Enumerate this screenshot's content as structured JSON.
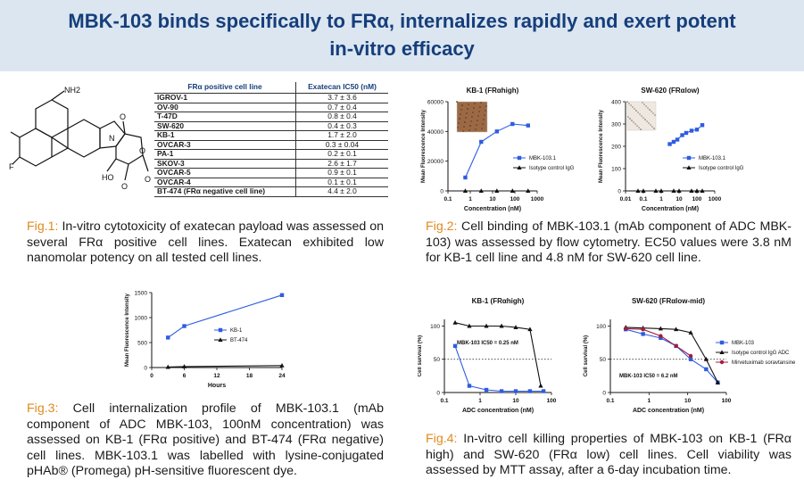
{
  "title": {
    "line1": "MBK-103 binds specifically to FRα, internalizes rapidly and exert potent",
    "line2": "in-vitro efficacy"
  },
  "table": {
    "headers": [
      "FRα positive cell line",
      "Exatecan IC50 (nM)"
    ],
    "rows": [
      {
        "cell_line": "IGROV-1",
        "ic50": "3.7 ± 3.6"
      },
      {
        "cell_line": "OV-90",
        "ic50": "0.7 ± 0.4"
      },
      {
        "cell_line": "T-47D",
        "ic50": "0.8 ± 0.4"
      },
      {
        "cell_line": "SW-620",
        "ic50": "0.4 ± 0.3"
      },
      {
        "cell_line": "KB-1",
        "ic50": "1.7 ± 2.0"
      },
      {
        "cell_line": "OVCAR-3",
        "ic50": "0.3 ± 0.04"
      },
      {
        "cell_line": "PA-1",
        "ic50": "0.2 ± 0.1"
      },
      {
        "cell_line": "SKOV-3",
        "ic50": "2.6 ± 1.7"
      },
      {
        "cell_line": "OVCAR-5",
        "ic50": "0.9 ± 0.1"
      },
      {
        "cell_line": "OVCAR-4",
        "ic50": "0.1 ± 0.1"
      },
      {
        "cell_line": "BT-474 (FRα negative cell line)",
        "ic50": "4.4 ± 2.0"
      }
    ]
  },
  "molecule": {
    "labels": [
      "NH2",
      "F",
      "HO",
      "O",
      "N",
      "O",
      "O",
      "O"
    ]
  },
  "captions": {
    "fig1": {
      "label": "Fig.1:",
      "text": " In-vitro cytotoxicity of exatecan payload was assessed on several FRα positive cell lines. Exatecan exhibited low nanomolar potency on all tested cell lines."
    },
    "fig2": {
      "label": "Fig.2:",
      "text": " Cell binding of MBK-103.1 (mAb component of ADC MBK-103) was assessed by flow cytometry. EC50 values were 3.8 nM for KB-1 cell line and 4.8 nM for SW-620 cell line."
    },
    "fig3": {
      "label": "Fig.3:",
      "text": " Cell internalization profile of MBK-103.1 (mAb component of ADC MBK-103, 100nM concentration) was assessed on KB-1 (FRα positive) and BT-474 (FRα negative) cell lines. MBK-103.1 was labelled with lysine-conjugated pHAb® (Promega) pH-sensitive fluorescent dye."
    },
    "fig4": {
      "label": "Fig.4:",
      "text": " In-vitro cell killing properties of MBK-103 on KB-1 (FRα high) and SW-620 (FRα low) cell lines. Cell viability was assessed by MTT assay, after a 6-day incubation time."
    }
  },
  "colors": {
    "accent": "#163e7a",
    "title_bg": "#dbe6f1",
    "caption_label": "#e08a1e",
    "blue": "#2f5ce0",
    "black": "#111111",
    "red": "#a21d3c"
  },
  "chart_data": [
    {
      "id": "fig2-kb1",
      "type": "scatter",
      "title": "KB-1 (FRαhigh)",
      "xlabel": "Concentration (nM)",
      "ylabel": "Mean Fluorescence Intensity",
      "xscale": "log",
      "xlim": [
        0.1,
        1000
      ],
      "ylim": [
        0,
        60000
      ],
      "xticks": [
        "0.1",
        "1",
        "10",
        "100",
        "1000"
      ],
      "yticks": [
        "0",
        "20000",
        "40000",
        "60000"
      ],
      "series": [
        {
          "name": "MBK-103.1",
          "x": [
            0.6,
            3.1,
            15.6,
            78,
            390
          ],
          "y": [
            9000,
            33000,
            40000,
            45000,
            44000
          ]
        },
        {
          "name": "Isotype control IgG",
          "x": [
            0.6,
            3.1,
            15.6,
            78,
            390
          ],
          "y": [
            0,
            0,
            0,
            0,
            0
          ]
        }
      ]
    },
    {
      "id": "fig2-sw620",
      "type": "scatter",
      "title": "SW-620 (FRαlow)",
      "xlabel": "Concentration (nM)",
      "ylabel": "Mean Fluorescence Intensity",
      "xscale": "log",
      "xlim": [
        0.01,
        1000
      ],
      "ylim": [
        0,
        400
      ],
      "xticks": [
        "0.01",
        "0.1",
        "1",
        "10",
        "100",
        "1000"
      ],
      "yticks": [
        "0",
        "100",
        "200",
        "300",
        "400"
      ],
      "series": [
        {
          "name": "MBK-103.1",
          "x": [
            3,
            5,
            8,
            15,
            25,
            50,
            100,
            200
          ],
          "y": [
            210,
            220,
            230,
            250,
            260,
            270,
            275,
            295
          ]
        },
        {
          "name": "Isotype control IgG",
          "x": [
            0.05,
            0.1,
            0.5,
            1,
            5,
            10,
            50,
            100,
            200
          ],
          "y": [
            0,
            0,
            0,
            0,
            0,
            0,
            0,
            0,
            0
          ]
        }
      ]
    },
    {
      "id": "fig3",
      "type": "line",
      "xlabel": "Hours",
      "ylabel": "Mean Fluorescence Intensity",
      "xlim": [
        0,
        24
      ],
      "ylim": [
        0,
        1500
      ],
      "xticks": [
        "0",
        "6",
        "12",
        "18",
        "24"
      ],
      "yticks": [
        "0",
        "500",
        "1000",
        "1500"
      ],
      "series": [
        {
          "name": "KB-1",
          "x": [
            3,
            6,
            24
          ],
          "y": [
            600,
            830,
            1450
          ]
        },
        {
          "name": "BT-474",
          "x": [
            3,
            6,
            24
          ],
          "y": [
            10,
            20,
            40
          ]
        }
      ]
    },
    {
      "id": "fig4-kb1",
      "type": "scatter",
      "title": "KB-1 (FRαhigh)",
      "xlabel": "ADC concentration (nM)",
      "ylabel": "Cell survival (%)",
      "xscale": "log",
      "xlim": [
        0.1,
        100
      ],
      "ylim": [
        0,
        110
      ],
      "xticks": [
        "0.1",
        "1",
        "10",
        "100"
      ],
      "yticks": [
        "0",
        "50",
        "100"
      ],
      "annotation": "MBK-103 IC50 = 0.25 nM",
      "series": [
        {
          "name": "MBK-103",
          "x": [
            0.2,
            0.5,
            1.5,
            4,
            10,
            25,
            60
          ],
          "y": [
            70,
            10,
            4,
            2,
            2,
            2,
            2
          ]
        },
        {
          "name": "Isotype control IgG ADC",
          "x": [
            0.2,
            0.5,
            1.5,
            4,
            10,
            25,
            50
          ],
          "y": [
            105,
            100,
            100,
            100,
            98,
            95,
            10
          ]
        }
      ]
    },
    {
      "id": "fig4-sw620",
      "type": "scatter",
      "title": "SW-620 (FRαlow-mid)",
      "xlabel": "ADC concentration (nM)",
      "ylabel": "Cell survival (%)",
      "xscale": "log",
      "xlim": [
        0.1,
        100
      ],
      "ylim": [
        0,
        110
      ],
      "xticks": [
        "0.1",
        "1",
        "10",
        "100"
      ],
      "yticks": [
        "0",
        "50",
        "100"
      ],
      "annotation": "MBK-103 IC50 = 6.2 nM",
      "series": [
        {
          "name": "MBK-103",
          "x": [
            0.25,
            0.7,
            2,
            5,
            12,
            30,
            60
          ],
          "y": [
            95,
            88,
            82,
            70,
            50,
            35,
            15
          ]
        },
        {
          "name": "Isotype control IgG ADC",
          "x": [
            0.25,
            0.7,
            2,
            5,
            12,
            30,
            60
          ],
          "y": [
            98,
            97,
            96,
            95,
            90,
            50,
            15
          ]
        },
        {
          "name": "Mirvetuximab soravtansine",
          "x": [
            0.25,
            0.7,
            2,
            5,
            12
          ],
          "y": [
            96,
            95,
            85,
            70,
            55
          ]
        }
      ]
    }
  ]
}
